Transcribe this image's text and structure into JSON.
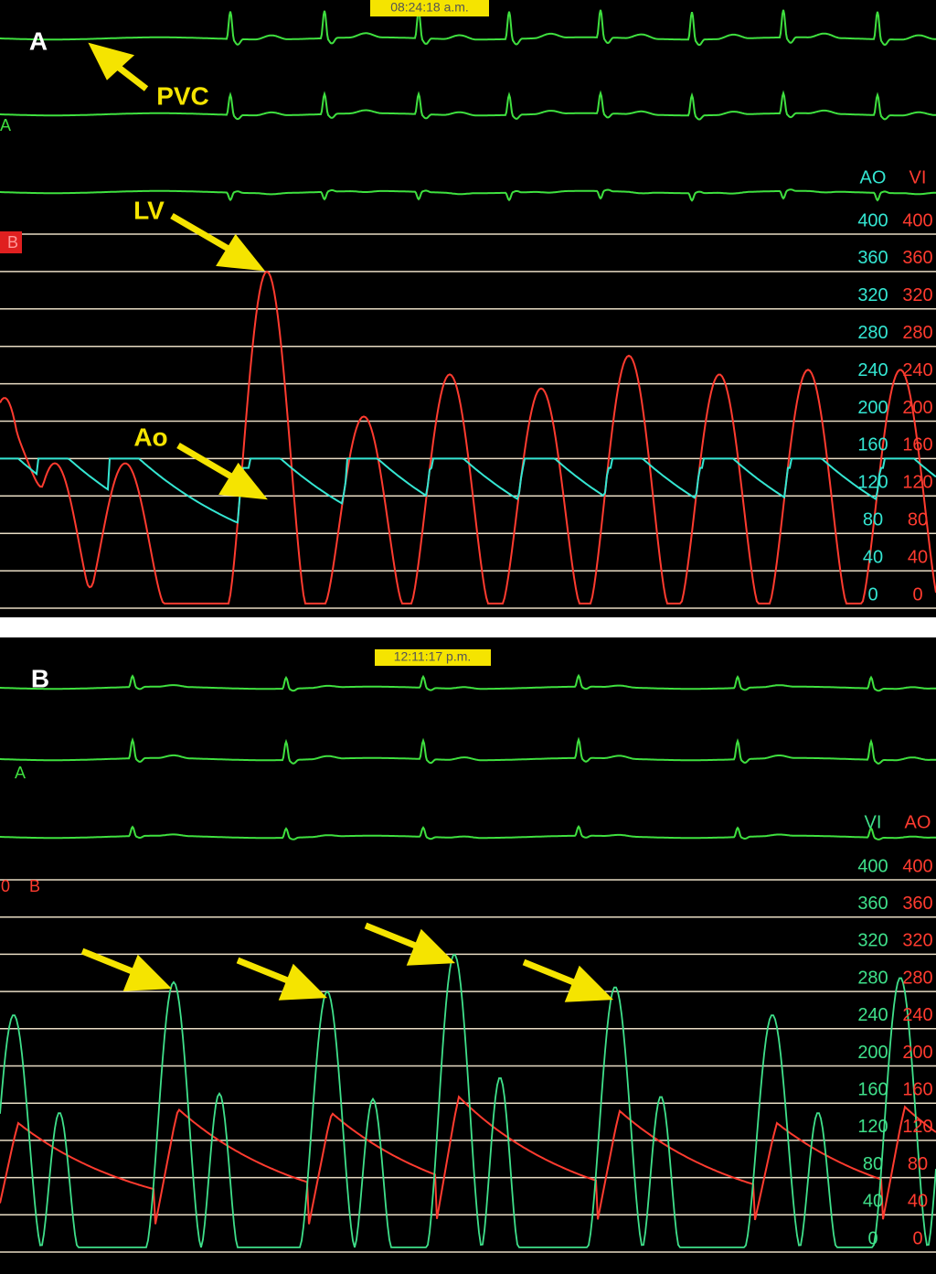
{
  "panels": [
    {
      "label": "A",
      "time": "08:24:18 a.m.",
      "channel_label": "A",
      "marker": "B",
      "annotations": [
        "PVC",
        "LV",
        "Ao"
      ],
      "scales": [
        {
          "name": "AO",
          "color": "#34e6d2",
          "ticks": [
            400,
            360,
            320,
            280,
            240,
            200,
            160,
            120,
            80,
            40,
            0
          ]
        },
        {
          "name": "VI",
          "color": "#ff3b2f",
          "ticks": [
            400,
            360,
            320,
            280,
            240,
            200,
            160,
            120,
            80,
            40,
            0
          ]
        }
      ]
    },
    {
      "label": "B",
      "time": "12:11:17 p.m.",
      "channel_label": "A",
      "marker": "B",
      "marker_prefix": "0",
      "scales": [
        {
          "name": "VI",
          "color": "#3fe08a",
          "ticks": [
            400,
            360,
            320,
            280,
            240,
            200,
            160,
            120,
            80,
            40,
            0
          ]
        },
        {
          "name": "AO",
          "color": "#ff3b2f",
          "ticks": [
            400,
            360,
            320,
            280,
            240,
            200,
            160,
            120,
            80,
            40,
            0
          ]
        }
      ]
    }
  ]
}
